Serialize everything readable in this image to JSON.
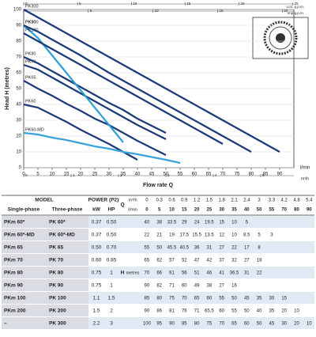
{
  "chart": {
    "y_label": "Head H (metres)",
    "x_label": "Flow rate Q",
    "x_unit": "l/min",
    "m3h_unit": "m³/h",
    "us_unit": "U.S. g.p.m.",
    "imp_unit": "Imp g.p.m.",
    "xlim": [
      0,
      95
    ],
    "xticks": [
      0,
      5,
      10,
      15,
      20,
      25,
      30,
      35,
      40,
      45,
      50,
      55,
      60,
      65,
      70,
      75,
      80,
      85,
      90
    ],
    "ylim": [
      0,
      100
    ],
    "yticks": [
      0,
      10,
      20,
      30,
      40,
      50,
      60,
      70,
      80,
      90,
      100
    ],
    "us_lim": [
      0,
      25.1
    ],
    "us_ticks": [
      0,
      5,
      10,
      15,
      20,
      25
    ],
    "imp_lim": [
      0,
      20.9
    ],
    "imp_ticks": [
      0,
      5,
      10,
      15,
      20
    ],
    "m3h_lim": [
      0,
      5.7
    ],
    "m3h_ticks": [
      0,
      1,
      2,
      3,
      4,
      5
    ],
    "curve_labels": [
      "PK60",
      "PK60-MD",
      "PK65",
      "PK70",
      "PK80",
      "PK90",
      "PK100",
      "PK200",
      "PK300"
    ],
    "curve_colors": [
      "#1b3a78",
      "#3aa2dc",
      "#1b3a78",
      "#1b3a78",
      "#1b3a78",
      "#2e9fd6",
      "#1b3a78",
      "#1b3a78",
      "#1b3a78"
    ]
  },
  "table": {
    "header": {
      "model": "MODEL",
      "power": "POWER (P2)",
      "single_phase": "Single-phase",
      "three_phase": "Three-phase",
      "kw": "kW",
      "hp": "HP",
      "q": "Q",
      "m3h_unit": "m³/h",
      "lmin_unit": "l/min",
      "h": "H",
      "metres": "metres"
    },
    "m3h": [
      0,
      0.3,
      0.6,
      0.9,
      1.2,
      1.5,
      1.8,
      2.1,
      2.4,
      3.0,
      3.3,
      4.2,
      4.8,
      5.4
    ],
    "lmin": [
      0,
      5,
      10,
      15,
      20,
      25,
      30,
      35,
      40,
      50,
      55,
      70,
      80,
      90
    ],
    "rows": [
      {
        "single": "PKm 60*",
        "three": "PK 60*",
        "kw": "0.37",
        "hp": "0.50",
        "head": [
          40,
          38,
          33.5,
          29,
          24,
          19.5,
          15,
          10,
          5
        ]
      },
      {
        "single": "PKm 60*-MD",
        "three": "PK 60*-MD",
        "kw": "0.37",
        "hp": "0.50",
        "head": [
          22,
          21,
          19,
          17.5,
          15.5,
          13.5,
          12,
          10,
          8.5,
          5,
          3
        ]
      },
      {
        "single": "PKm 65",
        "three": "PK 65",
        "kw": "0.50",
        "hp": "0.70",
        "head": [
          55,
          50,
          45.5,
          40.5,
          36,
          31,
          27,
          22,
          17,
          8
        ]
      },
      {
        "single": "PKm 70",
        "three": "PK 70",
        "kw": "0.60",
        "hp": "0.85",
        "head": [
          65,
          62,
          57,
          52,
          47,
          42,
          37,
          32,
          27,
          18
        ]
      },
      {
        "single": "PKm 80",
        "three": "PK 80",
        "kw": "0.75",
        "hp": "1",
        "head": [
          70,
          66,
          61,
          56,
          51,
          46,
          41,
          36.5,
          31,
          22
        ]
      },
      {
        "single": "PKm 90",
        "three": "PK 90",
        "kw": "0.75",
        "hp": "1",
        "head": [
          90,
          82,
          71,
          60,
          49,
          38,
          27,
          16
        ]
      },
      {
        "single": "PKm 100",
        "three": "PK 100",
        "kw": "1.1",
        "hp": "1.5",
        "head": [
          85,
          80,
          75,
          70,
          65,
          60,
          55,
          50,
          45,
          35,
          30,
          15
        ]
      },
      {
        "single": "PKm 200",
        "three": "PK 200",
        "kw": "1.5",
        "hp": "2",
        "head": [
          90,
          86,
          81,
          76,
          71,
          65.5,
          60,
          55,
          50,
          40,
          35,
          20,
          10
        ]
      },
      {
        "single": "–",
        "three": "PK 300",
        "kw": "2.2",
        "hp": "3",
        "head": [
          100,
          95,
          90,
          85,
          80,
          75,
          70,
          65,
          60,
          50,
          45,
          30,
          20,
          10
        ]
      }
    ]
  }
}
